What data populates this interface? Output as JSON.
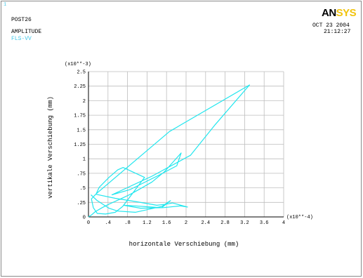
{
  "header": {
    "window_number": "1",
    "post_label": "POST26",
    "type_label": "AMPLITUDE",
    "variable_label": "FLS-VV",
    "logo_dark": "AN",
    "logo_accent": "SYS",
    "date": "OCT 23 2004",
    "time": "21:12:27"
  },
  "colors": {
    "curve": "#22e6ee",
    "grid": "#bdbdbd",
    "axis": "#000000",
    "annotation": "#44c8e8",
    "logo_accent": "#f1c40f"
  },
  "chart_data": {
    "type": "line",
    "title": "",
    "xlabel": "horizontale Verschiebung (mm)",
    "ylabel": "vertikale Verschiebung (mm)",
    "x_multiplier_label": "(x10**-4)",
    "y_multiplier_label": "(x10**-3)",
    "xlim": [
      0,
      4
    ],
    "ylim": [
      0,
      2.5
    ],
    "x_ticks": [
      0,
      0.4,
      0.8,
      1.2,
      1.6,
      2,
      2.4,
      2.8,
      3.2,
      3.6,
      4
    ],
    "x_tick_labels": [
      "0",
      ".4",
      ".8",
      "1.2",
      "1.6",
      "2",
      "2.4",
      "2.8",
      "3.2",
      "3.6",
      "4"
    ],
    "y_ticks": [
      0,
      0.25,
      0.5,
      0.75,
      1,
      1.25,
      1.5,
      1.75,
      2,
      2.25,
      2.5
    ],
    "y_tick_labels": [
      "0",
      ".25",
      ".5",
      ".75",
      "1",
      "1.25",
      "1.5",
      "1.75",
      "2",
      "2.25",
      "2.5"
    ],
    "grid": true,
    "series": [
      {
        "x": [
          0.0,
          0.07,
          0.14,
          0.28,
          0.42,
          0.58,
          0.71,
          0.86,
          1.05,
          1.3,
          1.56,
          1.9,
          1.81,
          1.47,
          0.85,
          0.48,
          1.3,
          2.09,
          2.6,
          3.3,
          1.66,
          0.16,
          0.22,
          0.42,
          0.6,
          0.71,
          1.15,
          0.7,
          0.55,
          0.35,
          0.18,
          0.1,
          0.06,
          0.15,
          0.55,
          1.0,
          1.4,
          1.6,
          1.72,
          2.03,
          1.88,
          1.53,
          1.07,
          0.72,
          0.96,
          1.28,
          1.5,
          1.68,
          1.5,
          0.96,
          0.6,
          0.42,
          0.18,
          0.05
        ],
        "y": [
          0.0,
          0.04,
          0.09,
          0.16,
          0.22,
          0.28,
          0.33,
          0.39,
          0.48,
          0.6,
          0.78,
          1.1,
          0.88,
          0.73,
          0.47,
          0.38,
          0.7,
          1.06,
          1.59,
          2.27,
          1.47,
          0.4,
          0.51,
          0.68,
          0.81,
          0.85,
          0.68,
          0.18,
          0.08,
          0.05,
          0.06,
          0.16,
          0.31,
          0.39,
          0.32,
          0.26,
          0.2,
          0.22,
          0.24,
          0.17,
          0.19,
          0.16,
          0.15,
          0.2,
          0.19,
          0.17,
          0.16,
          0.28,
          0.18,
          0.08,
          0.1,
          0.15,
          0.28,
          0.38
        ]
      }
    ]
  }
}
